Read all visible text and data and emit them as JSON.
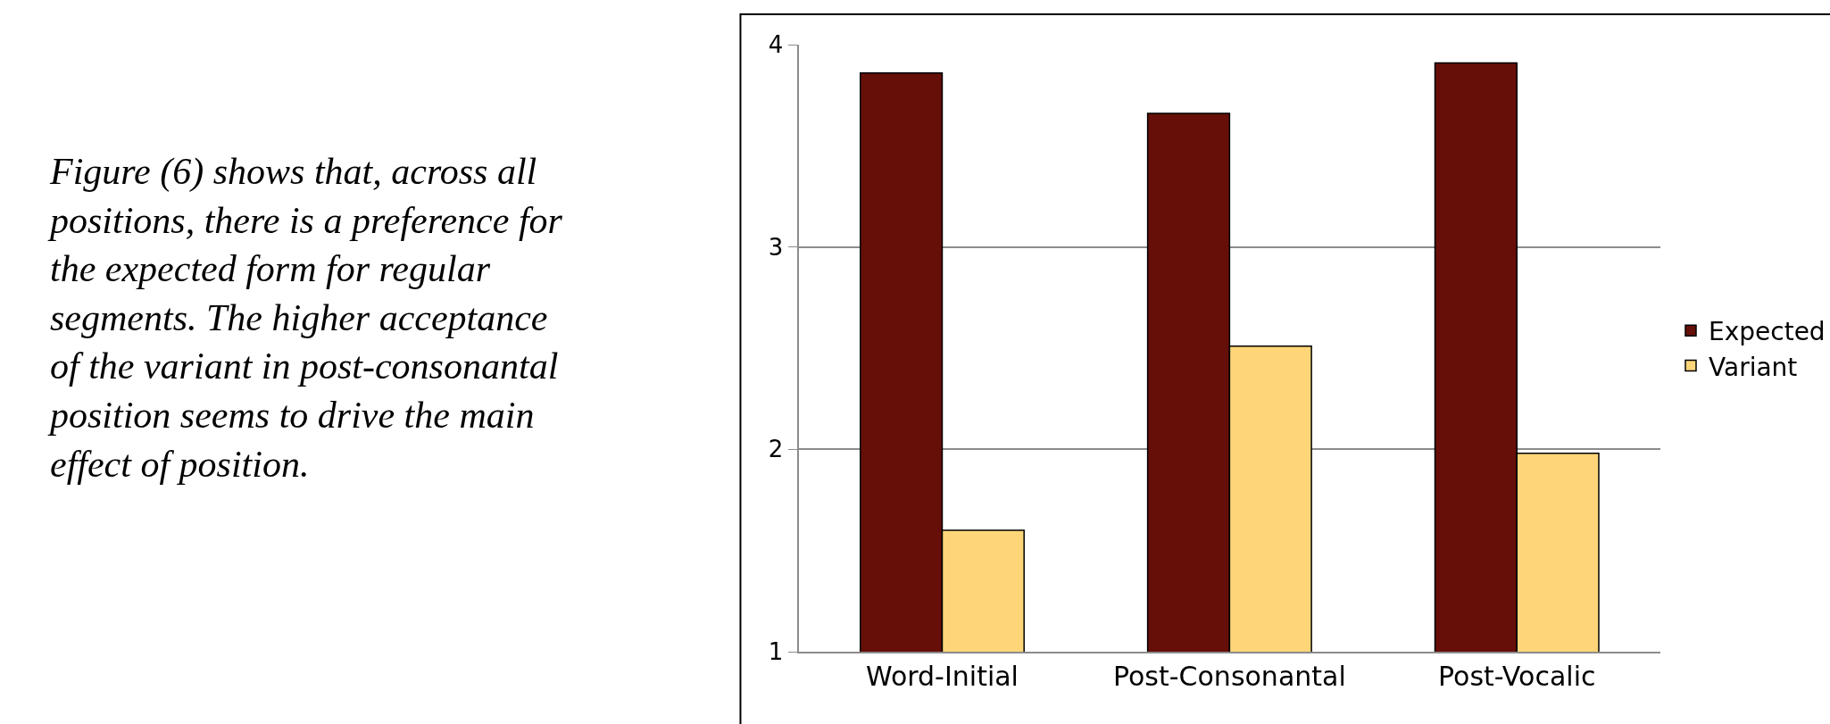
{
  "chart_data": {
    "type": "bar",
    "categories": [
      "Word-Initial",
      "Post-Consonantal",
      "Post-Vocalic"
    ],
    "series": [
      {
        "name": "Expected",
        "color": "#660f08",
        "values": [
          3.86,
          3.66,
          3.91
        ]
      },
      {
        "name": "Variant",
        "color": "#fed679",
        "values": [
          1.6,
          2.51,
          1.98
        ]
      }
    ],
    "ylim": [
      1,
      4
    ],
    "yticks": [
      1,
      2,
      3,
      4
    ],
    "grid": "y",
    "legend": "right",
    "annotations": [
      "Figure (6) shows that, across all\npositions, there is a preference for\nthe expected form for regular\nsegments. The higher acceptance\nof the variant in post-consonantal\nposition seems to drive the main\neffect of position."
    ]
  }
}
